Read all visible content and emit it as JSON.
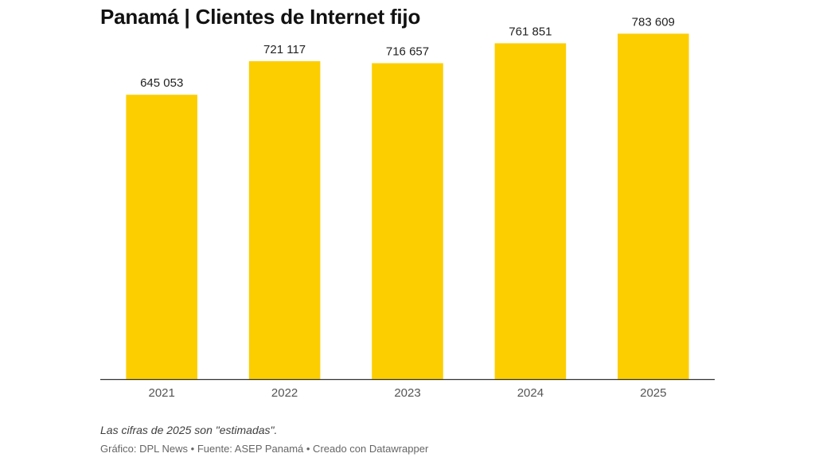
{
  "header": {
    "title": "Panamá | Clientes de Internet fijo"
  },
  "chart_data": {
    "type": "bar",
    "title": "Panamá | Clientes de Internet fijo",
    "categories": [
      "2021",
      "2022",
      "2023",
      "2024",
      "2025"
    ],
    "values": [
      645053,
      721117,
      716657,
      761851,
      783609
    ],
    "value_labels": [
      "645 053",
      "721 117",
      "716 657",
      "761 851",
      "783 609"
    ],
    "xlabel": "",
    "ylabel": "",
    "ylim": [
      0,
      860000
    ],
    "grid": false,
    "bar_color": "#fcce00",
    "axis_color": "#333333"
  },
  "footer": {
    "note": "Las cifras de 2025 son \"estimadas\".",
    "credits": "Gráfico: DPL News • Fuente: ASEP Panamá • Creado con Datawrapper"
  }
}
